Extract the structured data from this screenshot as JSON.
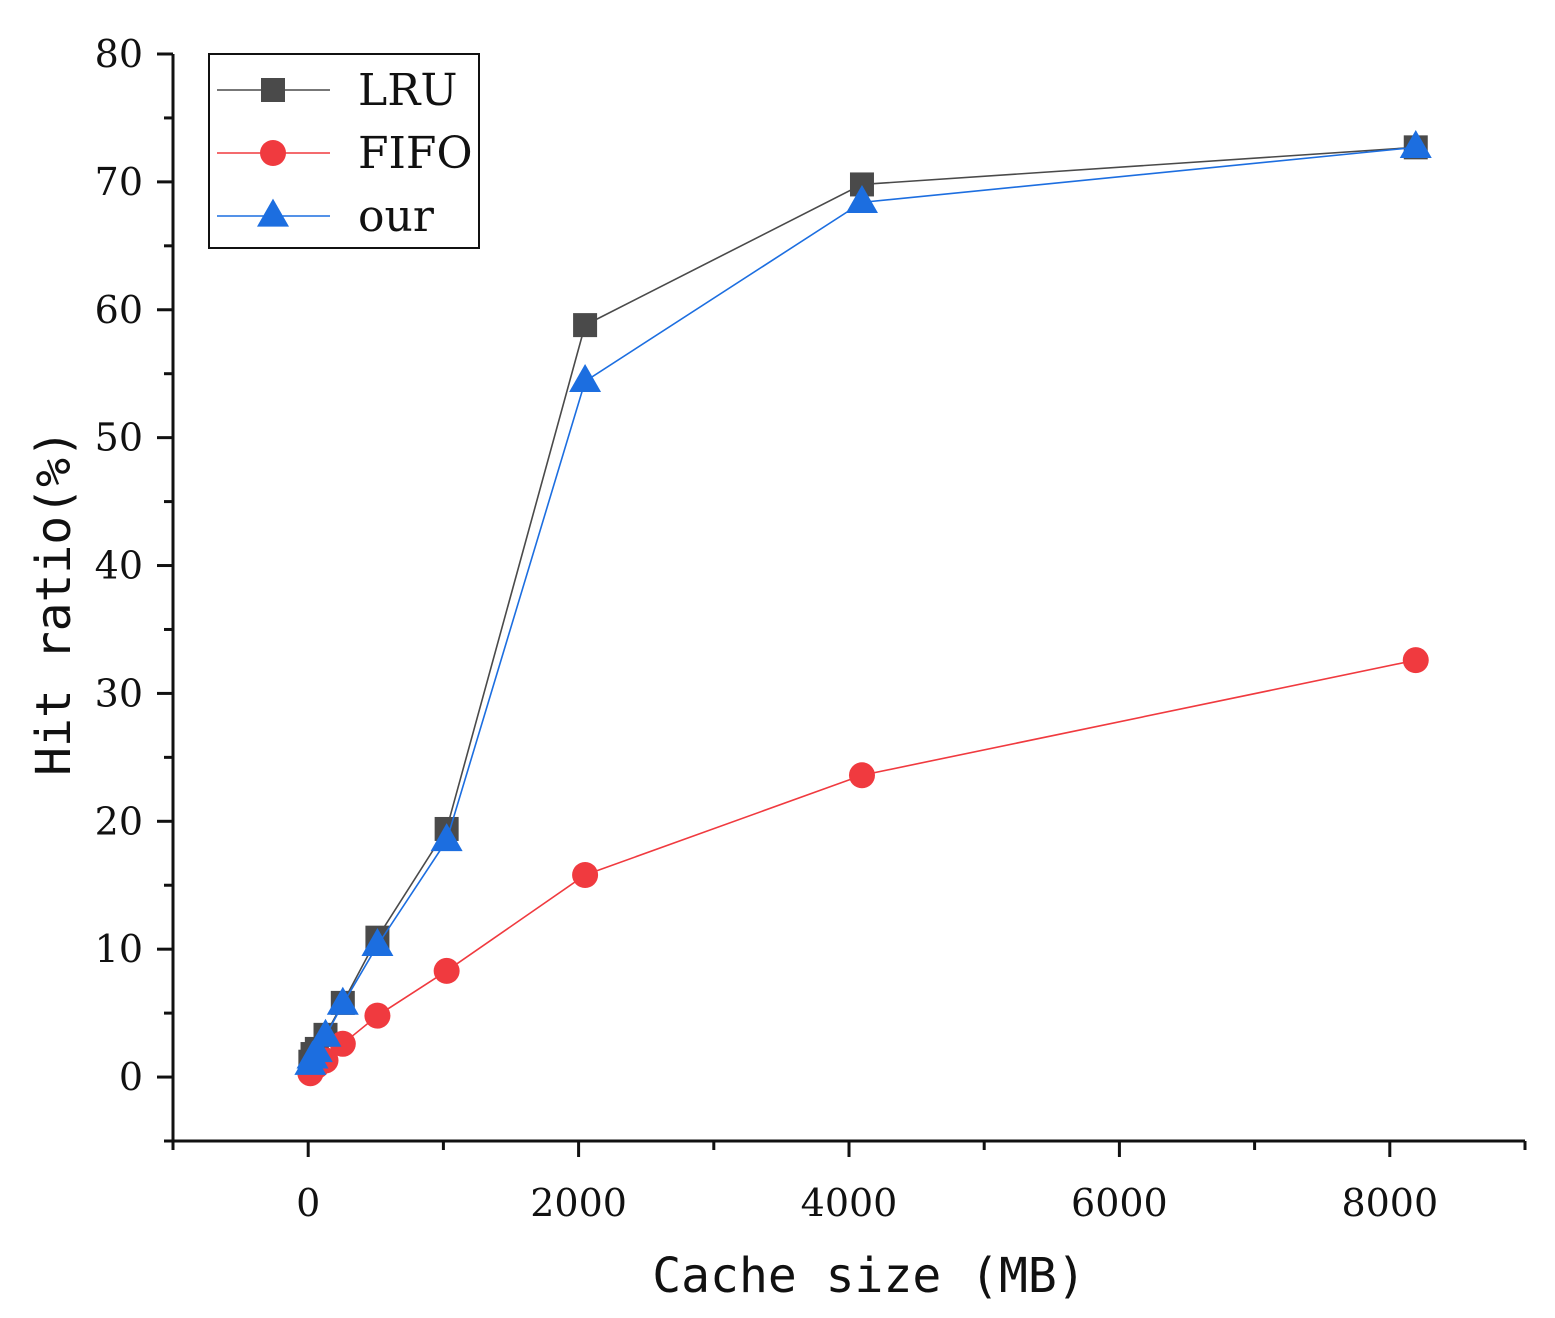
{
  "chart_data": {
    "type": "line",
    "title": "",
    "xlabel": "Cache size (MB)",
    "ylabel": "Hit ratio(%)",
    "xlim": [
      -1000,
      9000
    ],
    "ylim": [
      -5,
      80
    ],
    "xticks": [
      0,
      2000,
      4000,
      6000,
      8000
    ],
    "xtick_labels": [
      "0",
      "2000",
      "4000",
      "6000",
      "8000"
    ],
    "yticks": [
      0,
      10,
      20,
      30,
      40,
      50,
      60,
      70,
      80
    ],
    "ytick_labels": [
      "0",
      "10",
      "20",
      "30",
      "40",
      "50",
      "60",
      "70",
      "80"
    ],
    "grid": false,
    "legend_position": "top-left",
    "x": [
      16,
      32,
      64,
      128,
      256,
      512,
      1024,
      2048,
      4096,
      8192
    ],
    "series": [
      {
        "name": "LRU",
        "color": "#4a4a4a",
        "marker": "square",
        "values": [
          1.2,
          1.8,
          2.2,
          3.3,
          5.8,
          10.9,
          19.4,
          58.8,
          69.8,
          72.7
        ]
      },
      {
        "name": "FIFO",
        "color": "#f03a3f",
        "marker": "circle",
        "values": [
          0.3,
          0.6,
          0.9,
          1.3,
          2.6,
          4.8,
          8.3,
          15.8,
          23.6,
          32.6
        ]
      },
      {
        "name": "our",
        "color": "#1c6ee0",
        "marker": "triangle",
        "values": [
          1.0,
          1.5,
          2.0,
          3.2,
          5.7,
          10.3,
          18.5,
          54.4,
          68.4,
          72.7
        ]
      }
    ]
  }
}
